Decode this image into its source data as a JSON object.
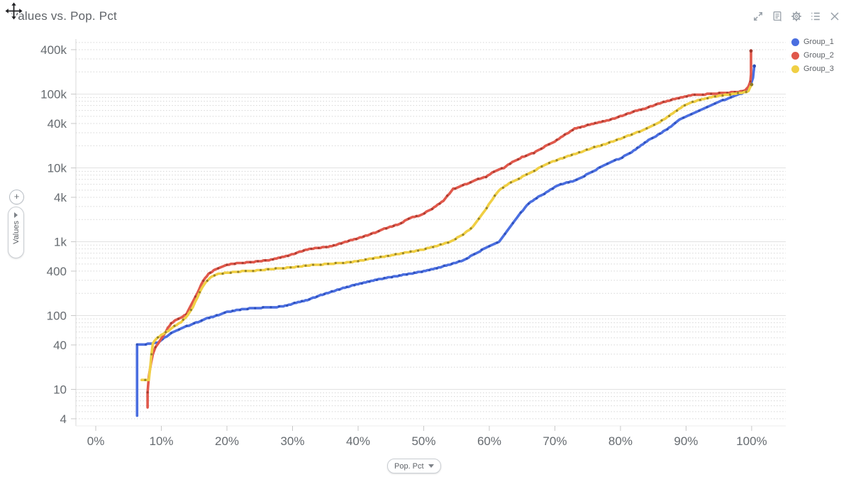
{
  "window": {
    "title": "Values vs. Pop. Pct",
    "toolbar_icons": [
      "expand",
      "report",
      "settings",
      "list",
      "close"
    ]
  },
  "controls": {
    "y_axis_pill_label": "Values",
    "x_axis_pill_label": "Pop. Pct",
    "zoom_in_label": "+"
  },
  "chart_data": {
    "type": "line",
    "title": "Values vs. Pop. Pct",
    "xlabel": "Pop. Pct",
    "ylabel": "Values",
    "y_scale": "log",
    "grid": "horizontal-only",
    "legend_position": "top-right-outside",
    "xlim_pct": [
      -3.03,
      105.2
    ],
    "ylim": [
      3.2,
      557000
    ],
    "x_ticks": [
      {
        "label": "0%",
        "value": 0
      },
      {
        "label": "10%",
        "value": 10
      },
      {
        "label": "20%",
        "value": 20
      },
      {
        "label": "30%",
        "value": 30
      },
      {
        "label": "40%",
        "value": 40
      },
      {
        "label": "50%",
        "value": 50
      },
      {
        "label": "60%",
        "value": 60
      },
      {
        "label": "70%",
        "value": 70
      },
      {
        "label": "80%",
        "value": 80
      },
      {
        "label": "90%",
        "value": 90
      },
      {
        "label": "100%",
        "value": 100
      }
    ],
    "y_ticks": [
      {
        "label": "400k",
        "value": 400000
      },
      {
        "label": "100k",
        "value": 100000
      },
      {
        "label": "40k",
        "value": 40000
      },
      {
        "label": "10k",
        "value": 10000
      },
      {
        "label": "4k",
        "value": 4000
      },
      {
        "label": "1k",
        "value": 1000
      },
      {
        "label": "400",
        "value": 400
      },
      {
        "label": "100",
        "value": 100
      },
      {
        "label": "40",
        "value": 40
      },
      {
        "label": "10",
        "value": 10
      },
      {
        "label": "4",
        "value": 4
      }
    ],
    "series": [
      {
        "name": "Group_1",
        "color": "#4a6ee0",
        "marker_color": "#2c4cb5",
        "points": [
          [
            6.3,
            4.4
          ],
          [
            6.3,
            40
          ],
          [
            7.0,
            40.5
          ],
          [
            9.5,
            43
          ],
          [
            10.5,
            50
          ],
          [
            11.5,
            58
          ],
          [
            13,
            67
          ],
          [
            15,
            78
          ],
          [
            17,
            92
          ],
          [
            19,
            103
          ],
          [
            20,
            112
          ],
          [
            22,
            120
          ],
          [
            24,
            126
          ],
          [
            27,
            130
          ],
          [
            28.6,
            133
          ],
          [
            30,
            145
          ],
          [
            32,
            160
          ],
          [
            34,
            185
          ],
          [
            36,
            210
          ],
          [
            38,
            240
          ],
          [
            40,
            268
          ],
          [
            42,
            295
          ],
          [
            44,
            320
          ],
          [
            46,
            345
          ],
          [
            48,
            370
          ],
          [
            50,
            400
          ],
          [
            52,
            440
          ],
          [
            54,
            490
          ],
          [
            56,
            560
          ],
          [
            58,
            700
          ],
          [
            60,
            880
          ],
          [
            61.5,
            1000
          ],
          [
            63,
            1500
          ],
          [
            64.5,
            2300
          ],
          [
            66,
            3300
          ],
          [
            67.5,
            4100
          ],
          [
            69,
            4800
          ],
          [
            70,
            5600
          ],
          [
            71.5,
            6200
          ],
          [
            73,
            6700
          ],
          [
            74.5,
            7800
          ],
          [
            76,
            9200
          ],
          [
            78,
            11500
          ],
          [
            80,
            13500
          ],
          [
            82,
            17000
          ],
          [
            84,
            23000
          ],
          [
            86,
            29000
          ],
          [
            88,
            38000
          ],
          [
            89,
            45000
          ],
          [
            90.5,
            52000
          ],
          [
            92,
            60000
          ],
          [
            93.5,
            68000
          ],
          [
            95,
            79000
          ],
          [
            96.5,
            88000
          ],
          [
            97.5,
            95000
          ],
          [
            98.5,
            102000
          ],
          [
            99.3,
            115000
          ],
          [
            99.8,
            130000
          ],
          [
            100.2,
            165000
          ],
          [
            100.4,
            240000
          ]
        ]
      },
      {
        "name": "Group_2",
        "color": "#e0584b",
        "marker_color": "#a23a2f",
        "points": [
          [
            7.9,
            5.7
          ],
          [
            7.9,
            9
          ],
          [
            8.1,
            15
          ],
          [
            8.4,
            22
          ],
          [
            8.7,
            30
          ],
          [
            9.1,
            37
          ],
          [
            9.5,
            42
          ],
          [
            10.2,
            52
          ],
          [
            11,
            68
          ],
          [
            11.5,
            79
          ],
          [
            12.3,
            88
          ],
          [
            13.2,
            96
          ],
          [
            13.8,
            105
          ],
          [
            14.5,
            135
          ],
          [
            15.2,
            180
          ],
          [
            15.8,
            230
          ],
          [
            16.4,
            300
          ],
          [
            17.2,
            370
          ],
          [
            18,
            410
          ],
          [
            19,
            450
          ],
          [
            20,
            490
          ],
          [
            21.5,
            510
          ],
          [
            23,
            525
          ],
          [
            25,
            545
          ],
          [
            27,
            575
          ],
          [
            29,
            640
          ],
          [
            30.5,
            700
          ],
          [
            32,
            780
          ],
          [
            34,
            830
          ],
          [
            36,
            870
          ],
          [
            38,
            990
          ],
          [
            40,
            1120
          ],
          [
            42,
            1270
          ],
          [
            44,
            1500
          ],
          [
            46,
            1700
          ],
          [
            48,
            2100
          ],
          [
            49.5,
            2300
          ],
          [
            51,
            2700
          ],
          [
            53,
            3600
          ],
          [
            54.5,
            5200
          ],
          [
            56,
            5800
          ],
          [
            58,
            6900
          ],
          [
            59.5,
            7600
          ],
          [
            61,
            9200
          ],
          [
            62.2,
            10000
          ],
          [
            63.5,
            12000
          ],
          [
            65,
            14000
          ],
          [
            66.8,
            16000
          ],
          [
            68.5,
            19500
          ],
          [
            70,
            23000
          ],
          [
            71.5,
            28000
          ],
          [
            73,
            34000
          ],
          [
            75,
            38000
          ],
          [
            77,
            42000
          ],
          [
            78.5,
            45000
          ],
          [
            80,
            50000
          ],
          [
            82,
            58000
          ],
          [
            84,
            65000
          ],
          [
            86,
            75000
          ],
          [
            88,
            85000
          ],
          [
            89.5,
            91000
          ],
          [
            91,
            97000
          ],
          [
            93.5,
            100000
          ],
          [
            96,
            104000
          ],
          [
            98,
            107000
          ],
          [
            99,
            112000
          ],
          [
            99.5,
            125000
          ],
          [
            99.8,
            150000
          ],
          [
            99.9,
            185000
          ],
          [
            99.9,
            385000
          ]
        ]
      },
      {
        "name": "Group_3",
        "color": "#f0cf44",
        "marker_color": "#8d7b26",
        "points": [
          [
            7.0,
            13.5
          ],
          [
            8.1,
            13.5
          ],
          [
            8.3,
            20
          ],
          [
            8.5,
            30
          ],
          [
            8.7,
            42
          ],
          [
            9.2,
            48
          ],
          [
            10,
            55
          ],
          [
            11,
            62
          ],
          [
            12,
            72
          ],
          [
            13,
            82
          ],
          [
            14,
            100
          ],
          [
            14.8,
            130
          ],
          [
            15.5,
            175
          ],
          [
            16.2,
            240
          ],
          [
            17,
            300
          ],
          [
            17.8,
            345
          ],
          [
            18.7,
            365
          ],
          [
            20,
            380
          ],
          [
            22,
            395
          ],
          [
            24,
            405
          ],
          [
            26,
            420
          ],
          [
            28,
            435
          ],
          [
            30,
            450
          ],
          [
            32,
            475
          ],
          [
            34,
            490
          ],
          [
            36,
            505
          ],
          [
            38,
            520
          ],
          [
            40,
            550
          ],
          [
            42,
            590
          ],
          [
            44,
            630
          ],
          [
            46,
            680
          ],
          [
            48,
            730
          ],
          [
            50,
            790
          ],
          [
            52,
            880
          ],
          [
            54,
            1000
          ],
          [
            56,
            1250
          ],
          [
            57.5,
            1600
          ],
          [
            59,
            2400
          ],
          [
            60.5,
            3800
          ],
          [
            61.5,
            5000
          ],
          [
            63,
            6200
          ],
          [
            64.5,
            7200
          ],
          [
            66,
            8300
          ],
          [
            68,
            10500
          ],
          [
            70,
            12500
          ],
          [
            72,
            14500
          ],
          [
            74,
            16500
          ],
          [
            76,
            19000
          ],
          [
            78,
            21500
          ],
          [
            80,
            25000
          ],
          [
            82,
            29000
          ],
          [
            84,
            34000
          ],
          [
            86,
            42000
          ],
          [
            88,
            55000
          ],
          [
            89.5,
            68000
          ],
          [
            91,
            78000
          ],
          [
            93,
            88000
          ],
          [
            95,
            95000
          ],
          [
            97,
            100000
          ],
          [
            98.5,
            104000
          ],
          [
            99.5,
            110000
          ],
          [
            100,
            135000
          ]
        ]
      }
    ]
  }
}
